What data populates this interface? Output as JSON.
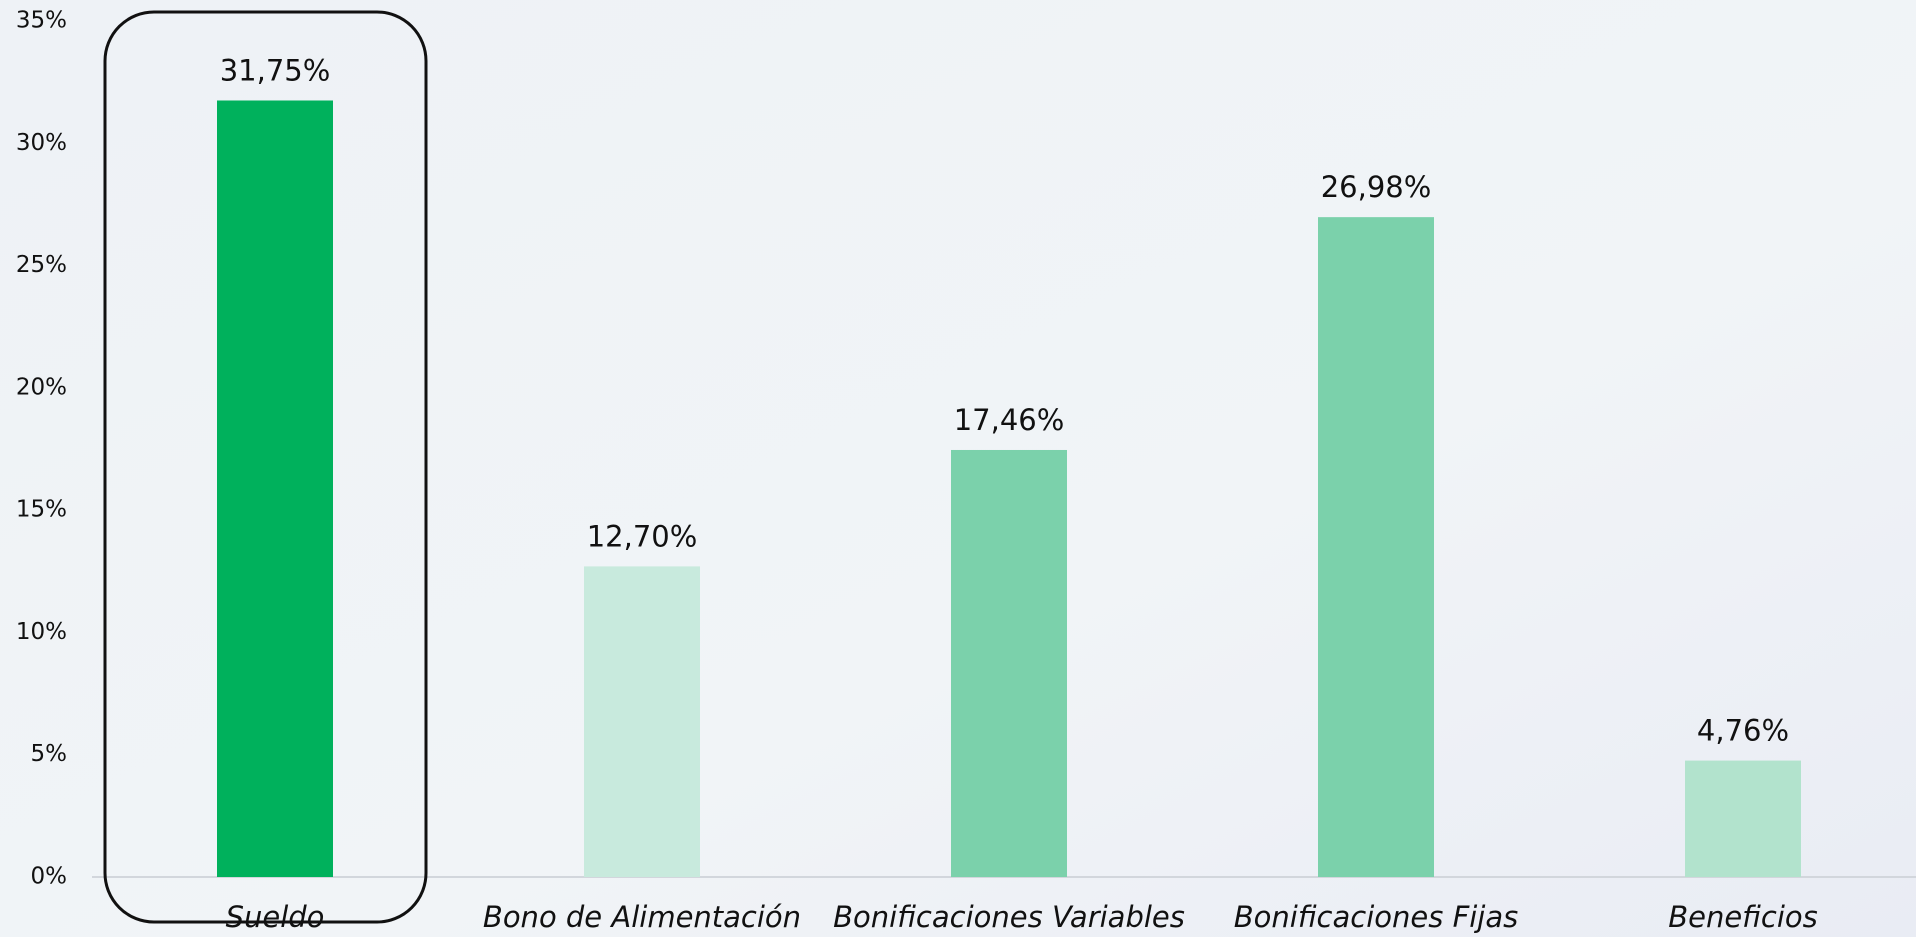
{
  "chart_data": {
    "type": "bar",
    "categories": [
      "Sueldo",
      "Bono de Alimentación",
      "Bonificaciones Variables",
      "Bonificaciones Fijas",
      "Beneficios"
    ],
    "values": [
      31.75,
      12.7,
      17.46,
      26.98,
      4.76
    ],
    "value_labels": [
      "31,75%",
      "12,70%",
      "17,46%",
      "26,98%",
      "4,76%"
    ],
    "colors": [
      "#00b15c",
      "#c8eadd",
      "#7bd1ab",
      "#7bd1ab",
      "#b2e3cd"
    ],
    "ylim": [
      0,
      35
    ],
    "yticks": [
      {
        "value": 0,
        "label": "0%"
      },
      {
        "value": 5,
        "label": "5%"
      },
      {
        "value": 10,
        "label": "10%"
      },
      {
        "value": 15,
        "label": "15%"
      },
      {
        "value": 20,
        "label": "20%"
      },
      {
        "value": 25,
        "label": "25%"
      },
      {
        "value": 30,
        "label": "30%"
      },
      {
        "value": 35,
        "label": "35%"
      }
    ],
    "grid": false
  }
}
